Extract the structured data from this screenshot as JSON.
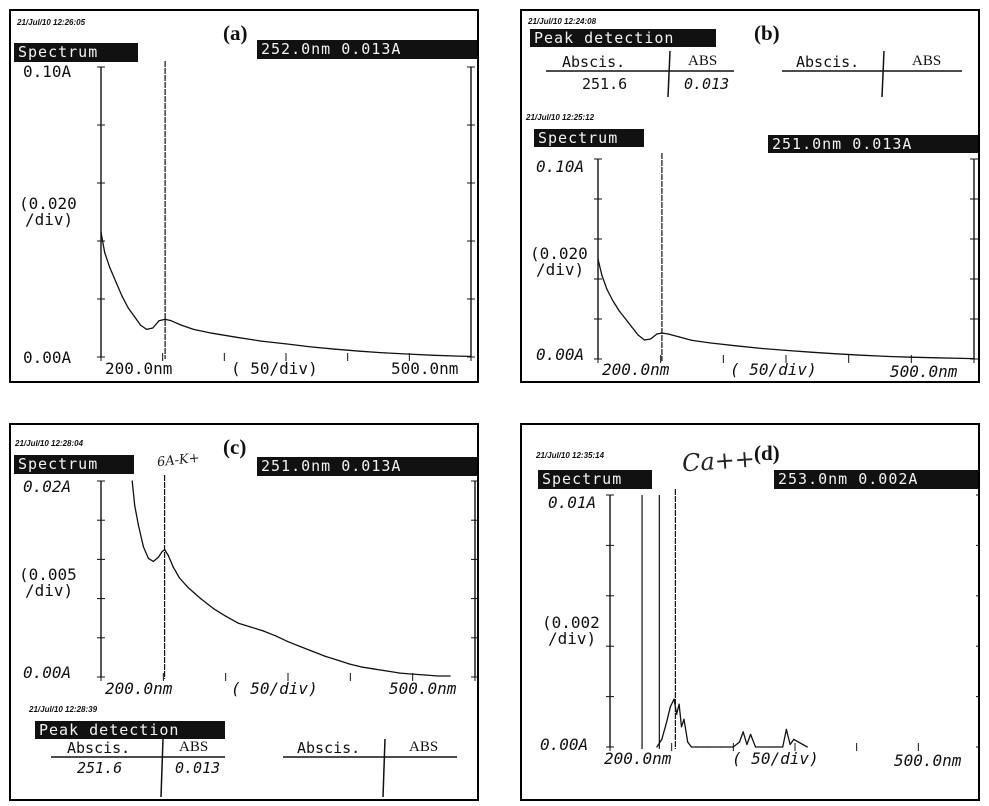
{
  "panels": [
    {
      "id": "a",
      "label": "(a)",
      "timestamp": "21/Jul/10 12:26:05",
      "mode": "Spectrum",
      "readout": "252.0nm  0.013A",
      "y_top": "0.10A",
      "y_div": "(0.020",
      "y_div2": "/div)",
      "y_bottom": "0.00A",
      "x_left": "200.0nm",
      "x_div": "(  50/div)",
      "x_right": "500.0nm"
    },
    {
      "id": "b",
      "label": "(b)",
      "peak_timestamp": "21/Jul/10 12:24:08",
      "peak_title": "Peak detection",
      "peak_col1": "Abscis.",
      "peak_col2": "ABS",
      "peak_val1": "251.6",
      "peak_val2": "0.013",
      "peak_col3": "Abscis.",
      "peak_col4": "ABS",
      "timestamp": "21/Jul/10 12:25:12",
      "mode": "Spectrum",
      "readout": "251.0nm  0.013A",
      "y_top": "0.10A",
      "y_div": "(0.020",
      "y_div2": "/div)",
      "y_bottom": "0.00A",
      "x_left": "200.0nm",
      "x_div": "(  50/div)",
      "x_right": "500.0nm"
    },
    {
      "id": "c",
      "label": "(c)",
      "handwritten": "6A-K+",
      "timestamp": "21/Jul/10 12:28:04",
      "mode": "Spectrum",
      "readout": "251.0nm  0.013A",
      "y_top": "0.02A",
      "y_div": "(0.005",
      "y_div2": "/div)",
      "y_bottom": "0.00A",
      "x_left": "200.0nm",
      "x_div": "(  50/div)",
      "x_right": "500.0nm",
      "peak_timestamp": "21/Jul/10 12:28:39",
      "peak_title": "Peak detection",
      "peak_col1": "Abscis.",
      "peak_col2": "ABS",
      "peak_val1": "251.6",
      "peak_val2": "0.013",
      "peak_col3": "Abscis.",
      "peak_col4": "ABS"
    },
    {
      "id": "d",
      "label": "(d)",
      "handwritten": "Ca++",
      "timestamp": "21/Jul/10 12:35:14",
      "mode": "Spectrum",
      "readout": "253.0nm  0.002A",
      "y_top": "0.01A",
      "y_div": "(0.002",
      "y_div2": "/div)",
      "y_bottom": "0.00A",
      "x_left": "200.0nm",
      "x_div": "(  50/div)",
      "x_right": "500.0nm"
    }
  ],
  "chart_data": [
    {
      "type": "line",
      "panel": "a",
      "xlim": [
        200,
        500
      ],
      "ylim": [
        0,
        0.1
      ],
      "cursor_x": 252,
      "x": [
        200,
        203,
        207,
        212,
        217,
        222,
        227,
        232,
        237,
        242,
        247,
        252,
        257,
        265,
        275,
        290,
        310,
        330,
        350,
        370,
        390,
        410,
        430,
        450,
        470,
        490,
        500
      ],
      "y": [
        0.043,
        0.036,
        0.031,
        0.026,
        0.021,
        0.017,
        0.014,
        0.011,
        0.0095,
        0.01,
        0.0125,
        0.013,
        0.0125,
        0.011,
        0.0095,
        0.0082,
        0.0068,
        0.0055,
        0.0045,
        0.0035,
        0.0027,
        0.002,
        0.0014,
        0.001,
        0.0006,
        0.0003,
        0.0002
      ]
    },
    {
      "type": "line",
      "panel": "b",
      "xlim": [
        200,
        500
      ],
      "ylim": [
        0,
        0.1
      ],
      "cursor_x": 251,
      "x": [
        200,
        203,
        207,
        212,
        217,
        222,
        227,
        232,
        237,
        242,
        247,
        251,
        256,
        265,
        275,
        290,
        310,
        330,
        350,
        370,
        390,
        410,
        430,
        450,
        470,
        490,
        500
      ],
      "y": [
        0.05,
        0.042,
        0.035,
        0.029,
        0.024,
        0.02,
        0.016,
        0.012,
        0.0095,
        0.01,
        0.0125,
        0.013,
        0.0125,
        0.011,
        0.0093,
        0.008,
        0.0066,
        0.0053,
        0.0043,
        0.0034,
        0.0026,
        0.0019,
        0.0013,
        0.0009,
        0.0006,
        0.0003,
        0.0002
      ]
    },
    {
      "type": "line",
      "panel": "c",
      "xlim": [
        200,
        500
      ],
      "ylim": [
        0,
        0.02
      ],
      "cursor_x": 251,
      "x": [
        225,
        227,
        230,
        234,
        238,
        242,
        246,
        249,
        251,
        254,
        258,
        263,
        270,
        280,
        290,
        300,
        310,
        320,
        330,
        340,
        350,
        360,
        370,
        380,
        390,
        400,
        410,
        420,
        430,
        440,
        450,
        460,
        470,
        480
      ],
      "y": [
        0.02,
        0.0175,
        0.0155,
        0.0133,
        0.0121,
        0.0118,
        0.0122,
        0.0128,
        0.013,
        0.0124,
        0.0112,
        0.0101,
        0.0091,
        0.008,
        0.007,
        0.0062,
        0.0055,
        0.0051,
        0.0047,
        0.0042,
        0.0036,
        0.0031,
        0.0026,
        0.0021,
        0.0017,
        0.0013,
        0.001,
        0.0008,
        0.0006,
        0.0004,
        0.0003,
        0.0002,
        0.0001,
        0.0001
      ]
    },
    {
      "type": "line",
      "panel": "d",
      "xlim": [
        200,
        500
      ],
      "ylim": [
        0,
        0.01
      ],
      "cursor_x": 253,
      "x": [
        238,
        242,
        246,
        249,
        252,
        254,
        256,
        258,
        260,
        263,
        266,
        270,
        280,
        290,
        300,
        305,
        308,
        311,
        314,
        318,
        330,
        340,
        343,
        346,
        349,
        360
      ],
      "y": [
        0,
        0.0003,
        0.001,
        0.0016,
        0.0019,
        0.0013,
        0.0017,
        0.0008,
        0.0011,
        0.0002,
        0,
        0,
        0,
        0,
        0,
        0.0002,
        0.0006,
        0.0001,
        0.0005,
        0,
        0,
        0,
        0.0007,
        0.0001,
        0.0003,
        0
      ]
    }
  ]
}
